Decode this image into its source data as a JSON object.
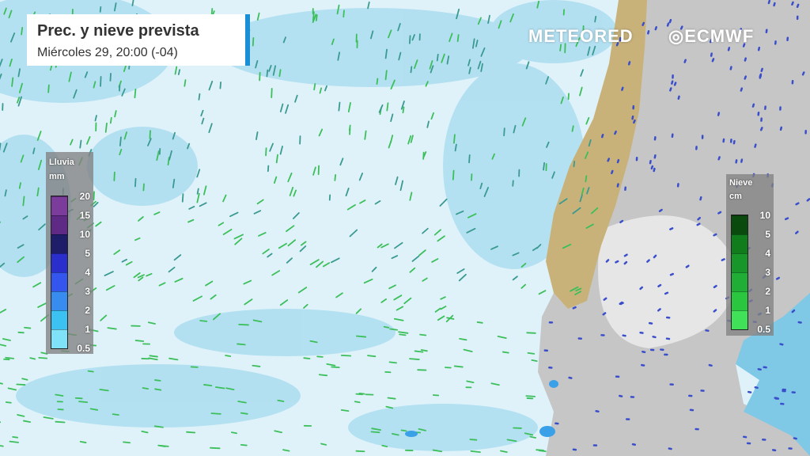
{
  "header": {
    "title": "Prec. y nieve prevista",
    "subtitle": "Miércoles 29, 20:00 (-04)"
  },
  "logos": {
    "meteored": "METEORED",
    "ecmwf": "ECMWF"
  },
  "rain_legend": {
    "title": "Lluvia",
    "unit": "mm",
    "labels": [
      "20",
      "15",
      "10",
      "5",
      "4",
      "3",
      "2",
      "1",
      "0.5"
    ],
    "colors": [
      "#7b3c9c",
      "#5e2a86",
      "#1e1d6a",
      "#2a2ecc",
      "#3456ee",
      "#388cf0",
      "#3cc2f2",
      "#80e2f8"
    ]
  },
  "snow_legend": {
    "title": "Nieve",
    "unit": "cm",
    "labels": [
      "10",
      "5",
      "4",
      "3",
      "2",
      "1",
      "0.5"
    ],
    "colors": [
      "#0a4a0c",
      "#107c1c",
      "#18962a",
      "#20ae36",
      "#2ac640",
      "#40e058"
    ]
  },
  "colors": {
    "ocean": "#dff2fa",
    "cloud": "#a9dcef",
    "land": "#c9c9c9",
    "andes": "#c8b27a",
    "accent": "#1a8fd6",
    "rain_streak": "#3cbf5a"
  }
}
